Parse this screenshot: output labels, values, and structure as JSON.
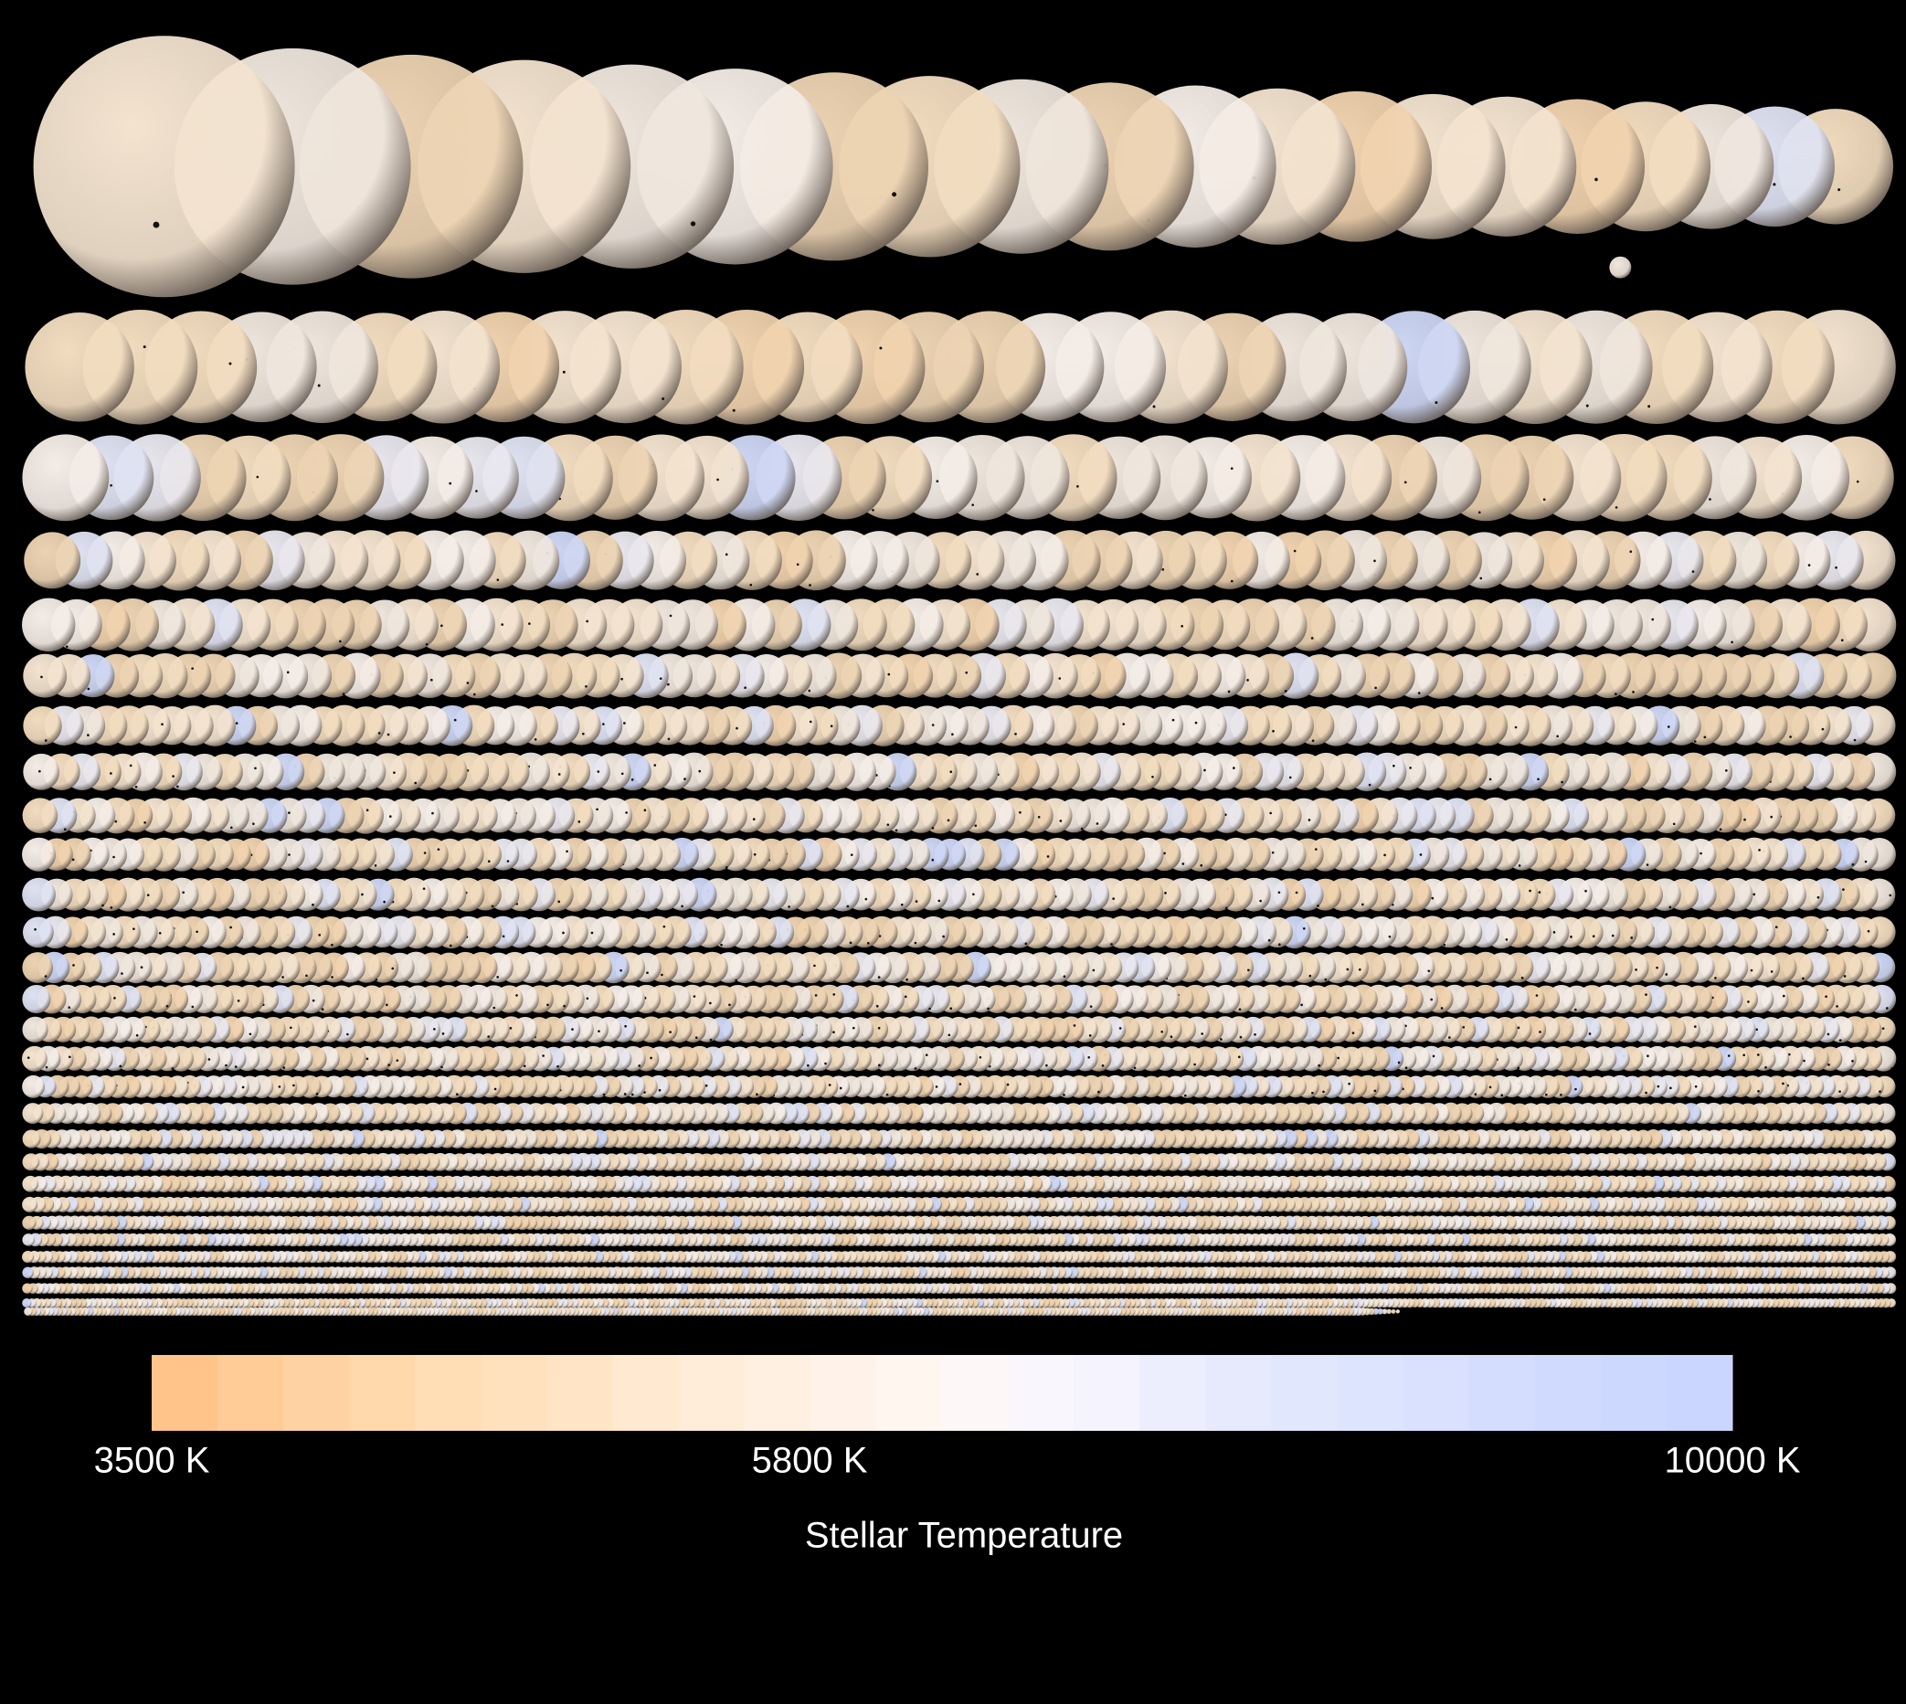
{
  "colorbar": {
    "title": "Stellar Temperature",
    "range": [
      3500,
      10000
    ],
    "ticks": [
      {
        "value": 3500,
        "label": "3500 K"
      },
      {
        "value": 5800,
        "label": "5800 K"
      },
      {
        "value": 10000,
        "label": "10000 K"
      }
    ]
  }
}
